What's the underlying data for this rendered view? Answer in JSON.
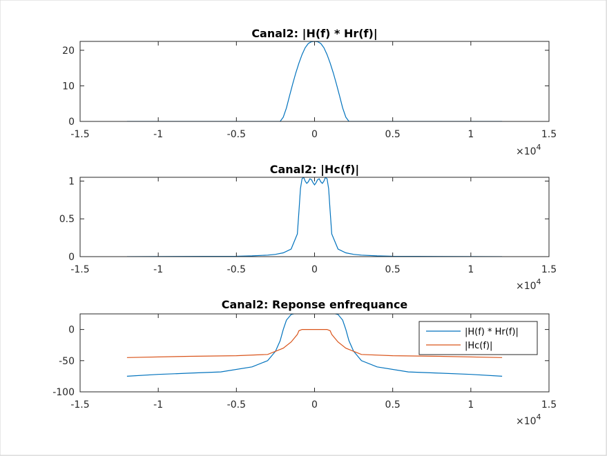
{
  "chart_data": [
    {
      "type": "line",
      "title": "Canal2: |H(f) * Hr(f)|",
      "xlim": [
        -15000,
        15000
      ],
      "ylim": [
        0,
        22.5
      ],
      "xticks": [
        -1.5,
        -1,
        -0.5,
        0,
        0.5,
        1,
        1.5
      ],
      "xtick_labels": [
        "-1.5",
        "-1",
        "-0.5",
        "0",
        "0.5",
        "1",
        "1.5"
      ],
      "yticks": [
        0,
        10,
        20
      ],
      "ytick_labels": [
        "0",
        "10",
        "20"
      ],
      "x_exponent": "×10",
      "x_exponent_power": "4",
      "series": [
        {
          "color": "#0072BD",
          "x": [
            -12000,
            -2200,
            -2000,
            -1800,
            -1600,
            -1400,
            -1200,
            -1000,
            -800,
            -600,
            -400,
            -200,
            0,
            200,
            400,
            600,
            800,
            1000,
            1200,
            1400,
            1600,
            1800,
            2000,
            2200,
            12000
          ],
          "y": [
            0,
            0,
            1.2,
            3.8,
            7.2,
            10.5,
            13.6,
            16.4,
            18.8,
            20.7,
            21.9,
            22.4,
            22.5,
            22.4,
            21.9,
            20.7,
            18.8,
            16.4,
            13.6,
            10.5,
            7.2,
            3.8,
            1.2,
            0,
            0
          ]
        }
      ]
    },
    {
      "type": "line",
      "title": "Canal2: |Hc(f)|",
      "xlim": [
        -15000,
        15000
      ],
      "ylim": [
        0,
        1.05
      ],
      "xticks": [
        -1.5,
        -1,
        -0.5,
        0,
        0.5,
        1,
        1.5
      ],
      "xtick_labels": [
        "-1.5",
        "-1",
        "-0.5",
        "0",
        "0.5",
        "1",
        "1.5"
      ],
      "yticks": [
        0,
        0.5,
        1
      ],
      "ytick_labels": [
        "0",
        "0.5",
        "1"
      ],
      "x_exponent": "×10",
      "x_exponent_power": "4",
      "series": [
        {
          "color": "#0072BD",
          "x": [
            -12000,
            -5000,
            -4000,
            -3000,
            -2500,
            -2000,
            -1500,
            -1100,
            -1000,
            -900,
            -800,
            -700,
            -600,
            -500,
            -400,
            -300,
            -200,
            -100,
            0,
            100,
            200,
            300,
            400,
            500,
            600,
            700,
            800,
            900,
            1000,
            1100,
            1500,
            2000,
            2500,
            3000,
            4000,
            5000,
            12000
          ],
          "y": [
            0,
            0.005,
            0.01,
            0.02,
            0.03,
            0.05,
            0.1,
            0.3,
            0.6,
            0.9,
            1.03,
            1.05,
            1.0,
            0.97,
            0.99,
            1.03,
            1.02,
            0.98,
            0.95,
            0.98,
            1.02,
            1.03,
            0.99,
            0.97,
            1.0,
            1.05,
            1.03,
            0.9,
            0.6,
            0.3,
            0.1,
            0.05,
            0.03,
            0.02,
            0.01,
            0.005,
            0
          ]
        }
      ]
    },
    {
      "type": "line",
      "title": "Canal2: Reponse enfrequance",
      "xlim": [
        -15000,
        15000
      ],
      "ylim": [
        -100,
        25
      ],
      "xticks": [
        -1.5,
        -1,
        -0.5,
        0,
        0.5,
        1,
        1.5
      ],
      "xtick_labels": [
        "-1.5",
        "-1",
        "-0.5",
        "0",
        "0.5",
        "1",
        "1.5"
      ],
      "yticks": [
        -100,
        -50,
        0
      ],
      "ytick_labels": [
        "-100",
        "-50",
        "0"
      ],
      "x_exponent": "×10",
      "x_exponent_power": "4",
      "legend_position": "top-right",
      "series": [
        {
          "name": "|H(f) * Hr(f)|",
          "color": "#0072BD",
          "x": [
            -12000,
            -10000,
            -8000,
            -6000,
            -4000,
            -3000,
            -2500,
            -2200,
            -2000,
            -1800,
            -1500,
            -1000,
            0,
            1000,
            1500,
            1800,
            2000,
            2200,
            2500,
            3000,
            4000,
            6000,
            8000,
            10000,
            12000
          ],
          "y": [
            -75,
            -72,
            -70,
            -68,
            -60,
            -50,
            -35,
            -18,
            0,
            15,
            24,
            27,
            27,
            27,
            24,
            15,
            0,
            -18,
            -35,
            -50,
            -60,
            -68,
            -70,
            -72,
            -75
          ]
        },
        {
          "name": "|Hc(f)|",
          "color": "#D95319",
          "x": [
            -12000,
            -8000,
            -5000,
            -3000,
            -2000,
            -1500,
            -1100,
            -1000,
            -800,
            -500,
            0,
            500,
            800,
            1000,
            1100,
            1500,
            2000,
            3000,
            5000,
            8000,
            12000
          ],
          "y": [
            -45,
            -43,
            -42,
            -40,
            -30,
            -20,
            -8,
            -2,
            0,
            0,
            0,
            0,
            0,
            -2,
            -8,
            -20,
            -30,
            -40,
            -42,
            -43,
            -45
          ]
        }
      ]
    }
  ]
}
